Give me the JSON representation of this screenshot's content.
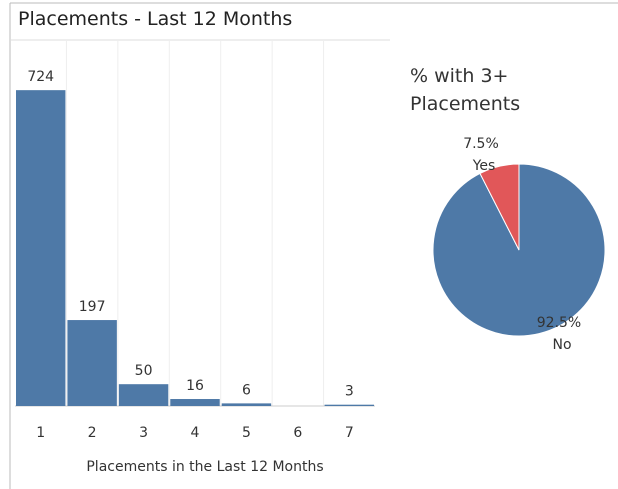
{
  "chart_data": [
    {
      "type": "bar",
      "title": "Placements - Last 12 Months",
      "x_label": "Placements in the Last 12 Months",
      "categories": [
        "1",
        "2",
        "3",
        "4",
        "5",
        "6",
        "7"
      ],
      "values": [
        724,
        197,
        50,
        16,
        6,
        null,
        3
      ],
      "color": "#4e79a7",
      "ylim": [
        0,
        800
      ]
    },
    {
      "type": "pie",
      "title": "% with 3+ Placements",
      "categories": [
        "No",
        "Yes"
      ],
      "values": [
        92.5,
        7.5
      ],
      "value_labels": [
        "92.5%",
        "7.5%"
      ],
      "colors": [
        "#4e79a7",
        "#e15759"
      ]
    }
  ]
}
